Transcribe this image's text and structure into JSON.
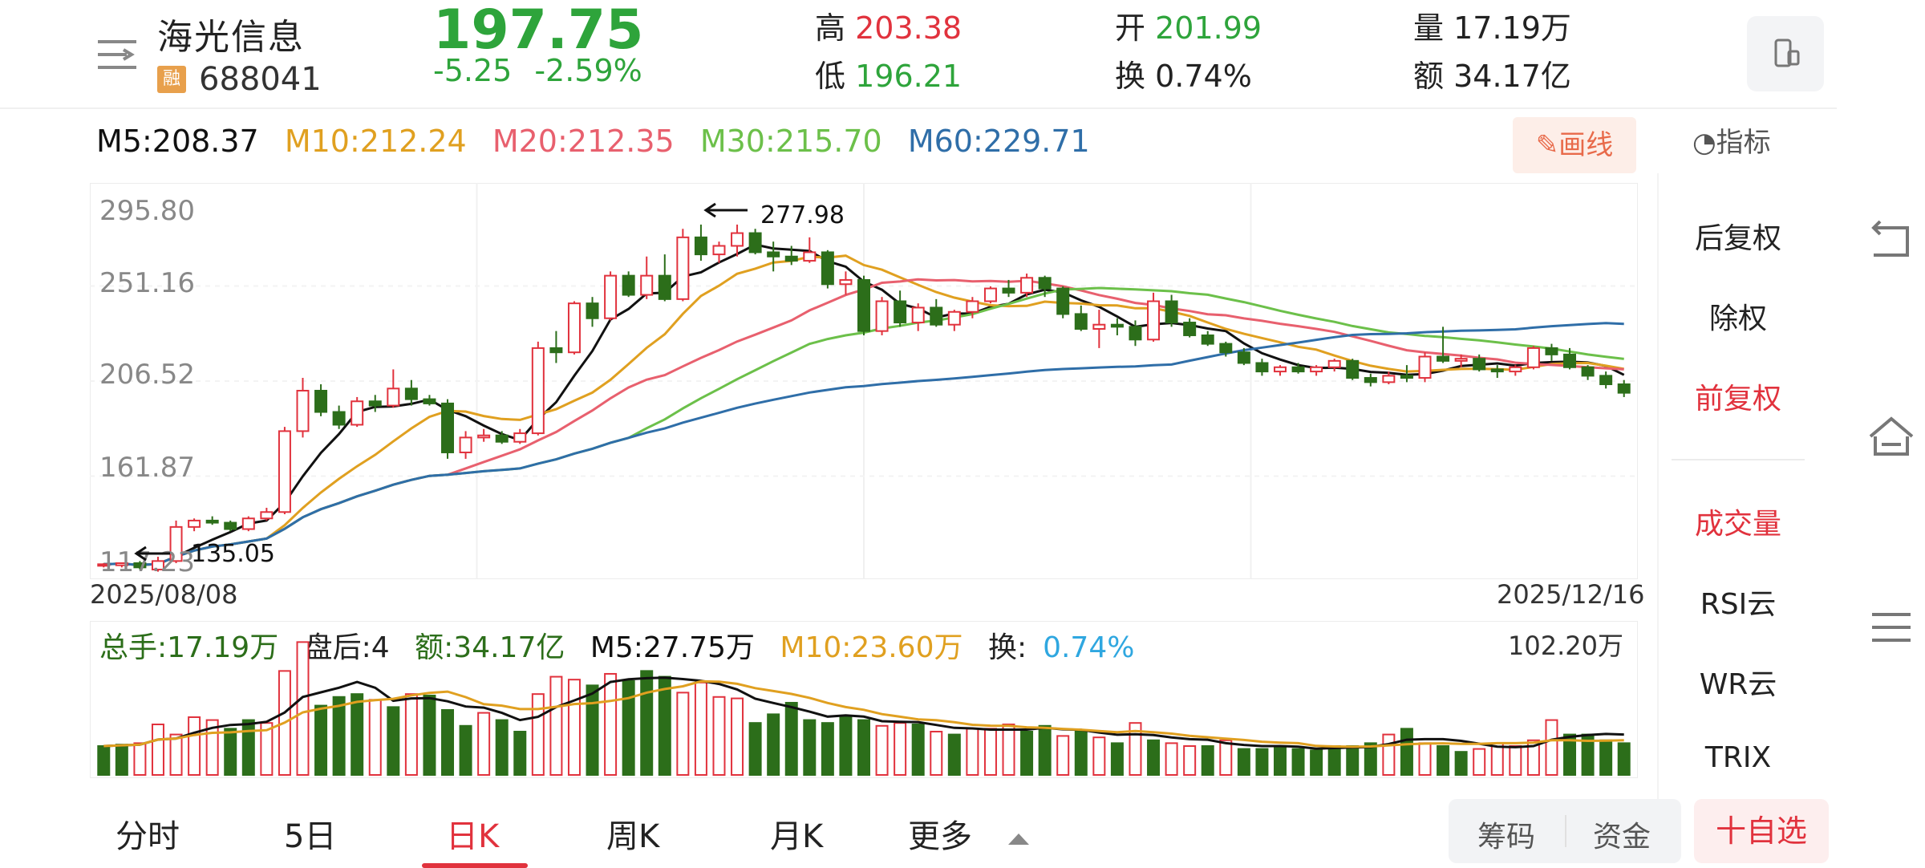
{
  "header": {
    "stock_name": "海光信息",
    "margin_badge": "融",
    "stock_code": "688041",
    "price": "197.75",
    "change": "-5.25",
    "change_pct": "-2.59%",
    "high_label": "高",
    "high": "203.38",
    "low_label": "低",
    "low": "196.21",
    "open_label": "开",
    "open": "201.99",
    "turnover_label": "换",
    "turnover": "0.74%",
    "volume_label": "量",
    "volume": "17.19万",
    "amount_label": "额",
    "amount": "34.17亿"
  },
  "ma_legend": {
    "m5": "M5:208.37",
    "m10": "M10:212.24",
    "m20": "M20:212.35",
    "m30": "M30:215.70",
    "m60": "M60:229.71"
  },
  "toolbar": {
    "draw_label": "画线",
    "indicator_label": "指标"
  },
  "side_panel": {
    "items": [
      "后复权",
      "除权",
      "前复权",
      "成交量",
      "RSI云",
      "WR云",
      "TRIX"
    ]
  },
  "chart_labels": {
    "y_ticks": [
      "295.80",
      "251.16",
      "206.52",
      "161.87",
      "117.23"
    ],
    "max_marker": "277.98",
    "min_marker": "135.05",
    "date_start": "2025/08/08",
    "date_end": "2025/12/16"
  },
  "volume_panel": {
    "total": "总手:17.19万",
    "after_hours": "盘后:4",
    "amount": "额:34.17亿",
    "m5": "M5:27.75万",
    "m10": "M10:23.60万",
    "turnover_label": "换:",
    "turnover_value": "0.74%",
    "max_value": "102.20万"
  },
  "tabs": [
    "分时",
    "5日",
    "日K",
    "周K",
    "月K",
    "更多"
  ],
  "active_tab": "日K",
  "bottom_buttons": {
    "chips": "筹码",
    "funds": "资金",
    "add_fav": "十自选"
  },
  "colors": {
    "up": "#e1323d",
    "down": "#2c6e1a",
    "m5": "#111111",
    "m10": "#e0a020",
    "m20": "#e8606e",
    "m30": "#6cc04a",
    "m60": "#2f6ea8"
  },
  "chart_data": {
    "type": "candlestick",
    "y_range": [
      117.23,
      295.8
    ],
    "candles": [
      [
        120,
        121,
        119,
        120.5,
        1
      ],
      [
        120,
        121,
        119,
        121,
        1
      ],
      [
        121,
        122,
        118,
        119,
        1
      ],
      [
        118,
        124,
        117,
        122,
        1
      ],
      [
        122,
        141,
        121,
        138,
        1
      ],
      [
        138,
        142,
        136,
        141,
        1
      ],
      [
        141,
        143,
        139,
        140,
        1
      ],
      [
        140,
        141,
        136,
        137,
        1
      ],
      [
        137,
        143,
        136,
        142,
        1
      ],
      [
        142,
        147,
        141,
        145,
        1
      ],
      [
        145,
        185,
        144,
        183,
        1
      ],
      [
        183,
        208,
        180,
        202,
        1
      ],
      [
        202,
        205,
        190,
        192,
        1
      ],
      [
        192,
        195,
        184,
        186,
        1
      ],
      [
        186,
        199,
        185,
        197,
        1
      ],
      [
        197,
        200,
        192,
        195,
        1
      ],
      [
        195,
        212,
        194,
        203,
        1
      ],
      [
        203,
        207,
        195,
        198,
        1
      ],
      [
        198,
        200,
        195,
        196,
        1
      ],
      [
        196,
        198,
        170,
        173,
        1
      ],
      [
        173,
        183,
        170,
        180,
        1
      ],
      [
        180,
        184,
        178,
        181,
        1
      ],
      [
        181,
        183,
        177,
        178,
        1
      ],
      [
        178,
        184,
        177,
        182,
        1
      ],
      [
        182,
        225,
        181,
        222,
        1
      ],
      [
        222,
        230,
        215,
        220,
        1
      ],
      [
        220,
        244,
        219,
        243,
        1
      ],
      [
        243,
        246,
        232,
        236,
        1
      ],
      [
        236,
        258,
        235,
        256,
        1
      ],
      [
        256,
        258,
        246,
        247,
        1
      ],
      [
        247,
        265,
        245,
        256,
        1
      ],
      [
        256,
        266,
        244,
        245,
        1
      ],
      [
        245,
        278,
        244,
        274,
        1
      ],
      [
        274,
        280,
        263,
        266,
        1
      ],
      [
        266,
        272,
        262,
        270,
        1
      ],
      [
        270,
        280,
        265,
        276,
        1
      ],
      [
        276,
        278,
        266,
        267,
        1
      ],
      [
        267,
        272,
        258,
        265,
        1
      ],
      [
        265,
        270,
        261,
        263,
        1
      ],
      [
        263,
        274,
        262,
        267,
        1
      ],
      [
        267,
        268,
        250,
        252,
        1
      ],
      [
        252,
        258,
        247,
        254,
        1
      ],
      [
        254,
        256,
        228,
        230,
        1
      ],
      [
        230,
        246,
        228,
        244,
        1
      ],
      [
        244,
        249,
        232,
        234,
        1
      ],
      [
        234,
        243,
        230,
        241,
        1
      ],
      [
        241,
        245,
        232,
        233,
        1
      ],
      [
        233,
        240,
        230,
        239,
        1
      ],
      [
        239,
        246,
        236,
        244,
        1
      ],
      [
        244,
        251,
        243,
        250,
        1
      ],
      [
        250,
        254,
        246,
        248,
        1
      ],
      [
        248,
        257,
        246,
        255,
        1
      ],
      [
        255,
        256,
        246,
        250,
        1
      ],
      [
        250,
        251,
        236,
        238,
        1
      ],
      [
        238,
        242,
        230,
        231,
        1
      ],
      [
        231,
        240,
        222,
        233,
        1
      ],
      [
        233,
        236,
        228,
        232,
        1
      ],
      [
        232,
        235,
        223,
        226,
        1
      ],
      [
        226,
        248,
        225,
        244,
        1
      ],
      [
        244,
        247,
        232,
        234,
        1
      ],
      [
        234,
        236,
        227,
        228,
        1
      ],
      [
        228,
        230,
        223,
        224,
        1
      ],
      [
        224,
        225,
        218,
        220,
        1
      ],
      [
        220,
        222,
        214,
        215,
        1
      ],
      [
        215,
        217,
        209,
        211,
        1
      ],
      [
        211,
        214,
        209,
        213,
        1
      ],
      [
        213,
        215,
        210,
        211,
        1
      ],
      [
        211,
        214,
        209,
        213,
        1
      ],
      [
        213,
        217,
        211,
        216,
        1
      ],
      [
        216,
        217,
        207,
        208,
        1
      ],
      [
        208,
        210,
        204,
        206,
        1
      ],
      [
        206,
        211,
        205,
        209,
        1
      ],
      [
        209,
        214,
        206,
        208,
        1
      ],
      [
        208,
        220,
        206,
        218,
        1
      ],
      [
        218,
        232,
        215,
        216,
        1
      ],
      [
        216,
        219,
        213,
        217,
        1
      ],
      [
        217,
        219,
        211,
        212,
        1
      ],
      [
        212,
        214,
        208,
        211,
        1
      ],
      [
        211,
        214,
        209,
        213,
        1
      ],
      [
        213,
        223,
        212,
        222,
        1
      ],
      [
        222,
        224,
        216,
        219,
        1
      ],
      [
        219,
        222,
        212,
        213,
        1
      ],
      [
        213,
        214,
        207,
        209,
        1
      ],
      [
        209,
        211,
        203,
        205,
        1
      ],
      [
        205,
        207,
        199,
        201,
        1
      ]
    ],
    "volume": [
      [
        20,
        0
      ],
      [
        21,
        0
      ],
      [
        22,
        1
      ],
      [
        35,
        1
      ],
      [
        28,
        1
      ],
      [
        40,
        1
      ],
      [
        38,
        1
      ],
      [
        32,
        0
      ],
      [
        38,
        0
      ],
      [
        36,
        1
      ],
      [
        72,
        1
      ],
      [
        92,
        1
      ],
      [
        48,
        0
      ],
      [
        54,
        0
      ],
      [
        56,
        0
      ],
      [
        52,
        1
      ],
      [
        47,
        0
      ],
      [
        56,
        1
      ],
      [
        55,
        0
      ],
      [
        45,
        0
      ],
      [
        34,
        0
      ],
      [
        43,
        1
      ],
      [
        38,
        0
      ],
      [
        30,
        0
      ],
      [
        56,
        1
      ],
      [
        68,
        1
      ],
      [
        66,
        1
      ],
      [
        62,
        0
      ],
      [
        70,
        1
      ],
      [
        65,
        0
      ],
      [
        72,
        0
      ],
      [
        68,
        0
      ],
      [
        57,
        1
      ],
      [
        64,
        1
      ],
      [
        54,
        1
      ],
      [
        53,
        1
      ],
      [
        36,
        0
      ],
      [
        42,
        0
      ],
      [
        50,
        0
      ],
      [
        38,
        0
      ],
      [
        36,
        0
      ],
      [
        40,
        0
      ],
      [
        38,
        0
      ],
      [
        34,
        1
      ],
      [
        36,
        1
      ],
      [
        35,
        0
      ],
      [
        30,
        1
      ],
      [
        28,
        0
      ],
      [
        32,
        1
      ],
      [
        32,
        1
      ],
      [
        35,
        1
      ],
      [
        30,
        0
      ],
      [
        34,
        0
      ],
      [
        27,
        1
      ],
      [
        30,
        0
      ],
      [
        26,
        1
      ],
      [
        22,
        0
      ],
      [
        36,
        1
      ],
      [
        24,
        0
      ],
      [
        22,
        1
      ],
      [
        20,
        1
      ],
      [
        20,
        0
      ],
      [
        24,
        1
      ],
      [
        18,
        0
      ],
      [
        18,
        0
      ],
      [
        20,
        0
      ],
      [
        18,
        0
      ],
      [
        17,
        0
      ],
      [
        20,
        0
      ],
      [
        20,
        0
      ],
      [
        22,
        0
      ],
      [
        28,
        1
      ],
      [
        32,
        0
      ],
      [
        22,
        1
      ],
      [
        20,
        0
      ],
      [
        16,
        0
      ],
      [
        18,
        1
      ],
      [
        22,
        1
      ],
      [
        20,
        1
      ],
      [
        24,
        1
      ],
      [
        38,
        1
      ],
      [
        28,
        0
      ],
      [
        28,
        0
      ],
      [
        24,
        0
      ],
      [
        22,
        0
      ]
    ]
  }
}
